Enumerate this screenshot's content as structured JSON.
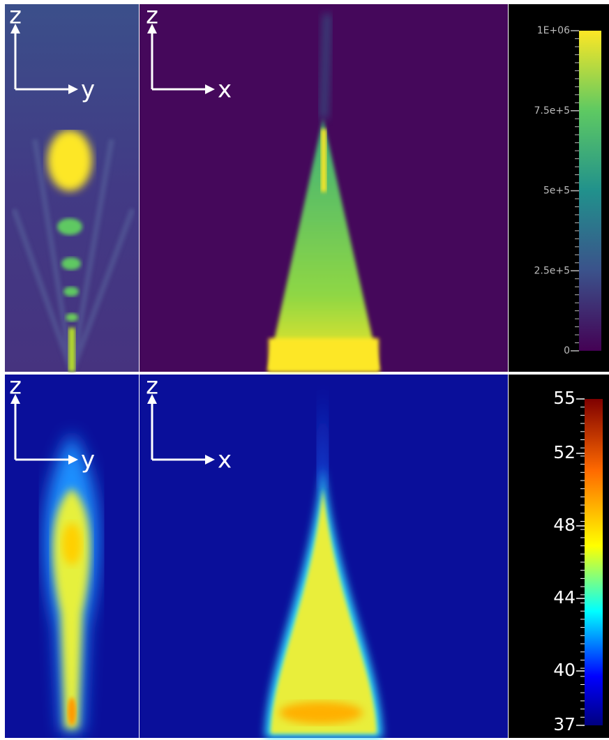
{
  "rows": [
    {
      "left_axes": {
        "vertical": "z",
        "horizontal": "y"
      },
      "right_axes": {
        "vertical": "z",
        "horizontal": "x"
      },
      "colorbar": {
        "lim": [
          0,
          1000000
        ],
        "ticks": [
          {
            "value": 1000000,
            "label": "1E+06"
          },
          {
            "value": 750000,
            "label": "7.5e+5"
          },
          {
            "value": 500000,
            "label": "5e+5"
          },
          {
            "value": 250000,
            "label": "2.5e+5"
          },
          0
        ]
      }
    },
    {
      "left_axes": {
        "vertical": "z",
        "horizontal": "y"
      },
      "right_axes": {
        "vertical": "z",
        "horizontal": "x"
      },
      "colorbar": {
        "lim": [
          37,
          55
        ],
        "ticks": [
          55,
          52,
          48,
          44,
          40,
          37
        ]
      }
    }
  ]
}
